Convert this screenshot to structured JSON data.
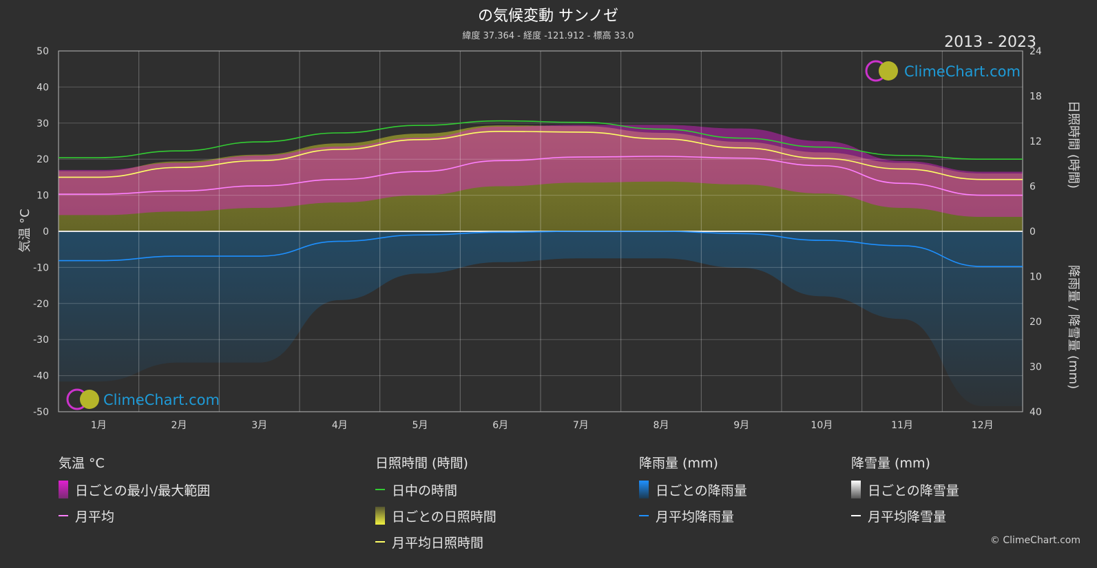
{
  "title": "の気候変動 サンノゼ",
  "subtitle": "緯度 37.364 - 経度 -121.912 - 標高 33.0",
  "years": "2013 - 2023",
  "logo_text": "ClimeChart.com",
  "copyright": "© ClimeChart.com",
  "colors": {
    "background": "#2f2f2f",
    "temp_range": "#e020d0",
    "temp_avg": "#ff80ff",
    "daylight": "#33cc33",
    "sunshine_band": "#b8b830",
    "sunshine_avg": "#ffff66",
    "rain_band": "#1a5f8f",
    "rain_avg": "#1e90ff",
    "snow_avg": "#ffffff"
  },
  "legend": {
    "temp": {
      "heading": "気温 °C",
      "range_label": "日ごとの最小/最大範囲",
      "avg_label": "月平均"
    },
    "sun": {
      "heading": "日照時間 (時間)",
      "daylight_label": "日中の時間",
      "daily_label": "日ごとの日照時間",
      "avg_label": "月平均日照時間"
    },
    "rain": {
      "heading": "降雨量 (mm)",
      "daily_label": "日ごとの降雨量",
      "avg_label": "月平均降雨量"
    },
    "snow": {
      "heading": "降雪量 (mm)",
      "daily_label": "日ごとの降雪量",
      "avg_label": "月平均降雪量"
    }
  },
  "chart_data": {
    "type": "line",
    "categories": [
      "1月",
      "2月",
      "3月",
      "4月",
      "5月",
      "6月",
      "7月",
      "8月",
      "9月",
      "10月",
      "11月",
      "12月"
    ],
    "left_axis": {
      "label": "気温 °C",
      "range": [
        -50,
        50
      ],
      "ticks": [
        50,
        40,
        30,
        20,
        10,
        0,
        -10,
        -20,
        -30,
        -40,
        -50
      ]
    },
    "right_axis_top": {
      "label": "日照時間 (時間)",
      "range": [
        0,
        24
      ],
      "ticks": [
        24,
        18,
        12,
        6,
        0
      ]
    },
    "right_axis_bottom": {
      "label": "降雨量 / 降雪量 (mm)",
      "range": [
        0,
        40
      ],
      "ticks": [
        10,
        20,
        30,
        40
      ]
    },
    "grid": true,
    "series": [
      {
        "name": "日中の時間",
        "axis": "sun",
        "values": [
          9.8,
          10.7,
          11.9,
          13.1,
          14.1,
          14.7,
          14.5,
          13.6,
          12.4,
          11.2,
          10.1,
          9.6
        ]
      },
      {
        "name": "月平均日照時間",
        "axis": "sun",
        "values": [
          7.2,
          8.5,
          9.4,
          10.9,
          12.2,
          13.3,
          13.2,
          12.3,
          11.1,
          9.7,
          8.3,
          6.9
        ]
      },
      {
        "name": "月平均",
        "axis": "temp",
        "values": [
          10.3,
          11.2,
          12.6,
          14.4,
          16.6,
          19.6,
          20.6,
          20.8,
          20.3,
          18.2,
          13.3,
          10.0
        ]
      },
      {
        "name": "月平均降雨量",
        "axis": "rain",
        "values": [
          6.5,
          5.5,
          5.5,
          2.2,
          0.8,
          0.2,
          0.0,
          0.0,
          0.5,
          2.0,
          3.2,
          7.8
        ]
      },
      {
        "name": "月平均降雪量",
        "axis": "rain",
        "values": [
          0,
          0,
          0,
          0,
          0,
          0,
          0,
          0,
          0,
          0,
          0,
          0
        ]
      }
    ],
    "temp_range": {
      "min": [
        4.5,
        5.5,
        6.5,
        8.0,
        10.0,
        12.5,
        13.5,
        13.8,
        13.0,
        10.5,
        6.5,
        4.0
      ],
      "max": [
        17.0,
        19.0,
        21.0,
        23.5,
        26.0,
        29.0,
        29.5,
        29.5,
        28.5,
        25.0,
        19.5,
        16.5
      ]
    }
  }
}
